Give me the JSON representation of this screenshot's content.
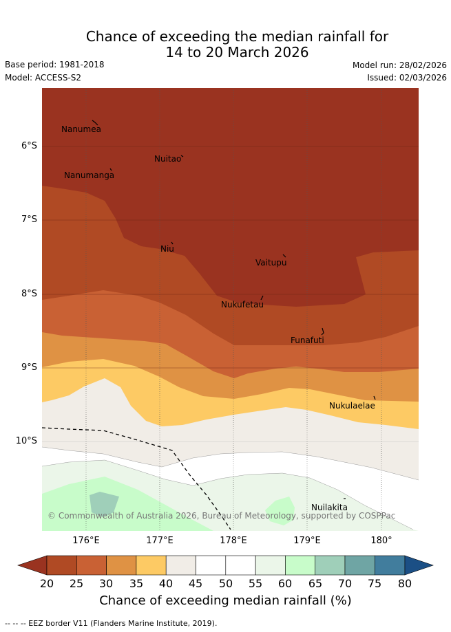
{
  "title": {
    "line1": "Chance of exceeding the median rainfall for",
    "line2": "14 to 20 March 2026"
  },
  "meta": {
    "base_period": "Base period: 1981-2018",
    "model": "Model: ACCESS-S2",
    "model_run": "Model run: 28/02/2026",
    "issued": "Issued: 02/03/2026"
  },
  "map": {
    "latitude_labels": [
      "6°S",
      "7°S",
      "8°S",
      "9°S",
      "10°S"
    ],
    "longitude_labels": [
      "176°E",
      "177°E",
      "178°E",
      "179°E",
      "180°"
    ],
    "places": [
      "Nanumea",
      "Nuitao",
      "Nanumanga",
      "Niu",
      "Vaitupu",
      "Nukufetau",
      "Funafuti",
      "Nukulaelae",
      "Nuilakita"
    ],
    "copyright": "© Commonwealth of Australia 2026, Bureau of Meteorology, supported by COSPPac"
  },
  "colorbar": {
    "ticks": [
      "20",
      "25",
      "30",
      "35",
      "40",
      "45",
      "50",
      "55",
      "60",
      "65",
      "70",
      "75",
      "80"
    ],
    "colors": {
      "below": "#9a3320",
      "c20": "#b04a24",
      "c25": "#c96134",
      "c30": "#df9244",
      "c35": "#fdca64",
      "c40": "#f1ede7",
      "c45": "#ffffff",
      "c50": "#ffffff",
      "c55": "#ebf6e9",
      "c60": "#c8fcca",
      "c65": "#9fcfb9",
      "c70": "#6fa5a4",
      "c75": "#417d9d",
      "above": "#1b4f85"
    },
    "label": "Chance of exceeding median rainfall (%)"
  },
  "footer": {
    "eez": "-- -- -- EEZ border V11 (Flanders Marine Institute, 2019)."
  }
}
